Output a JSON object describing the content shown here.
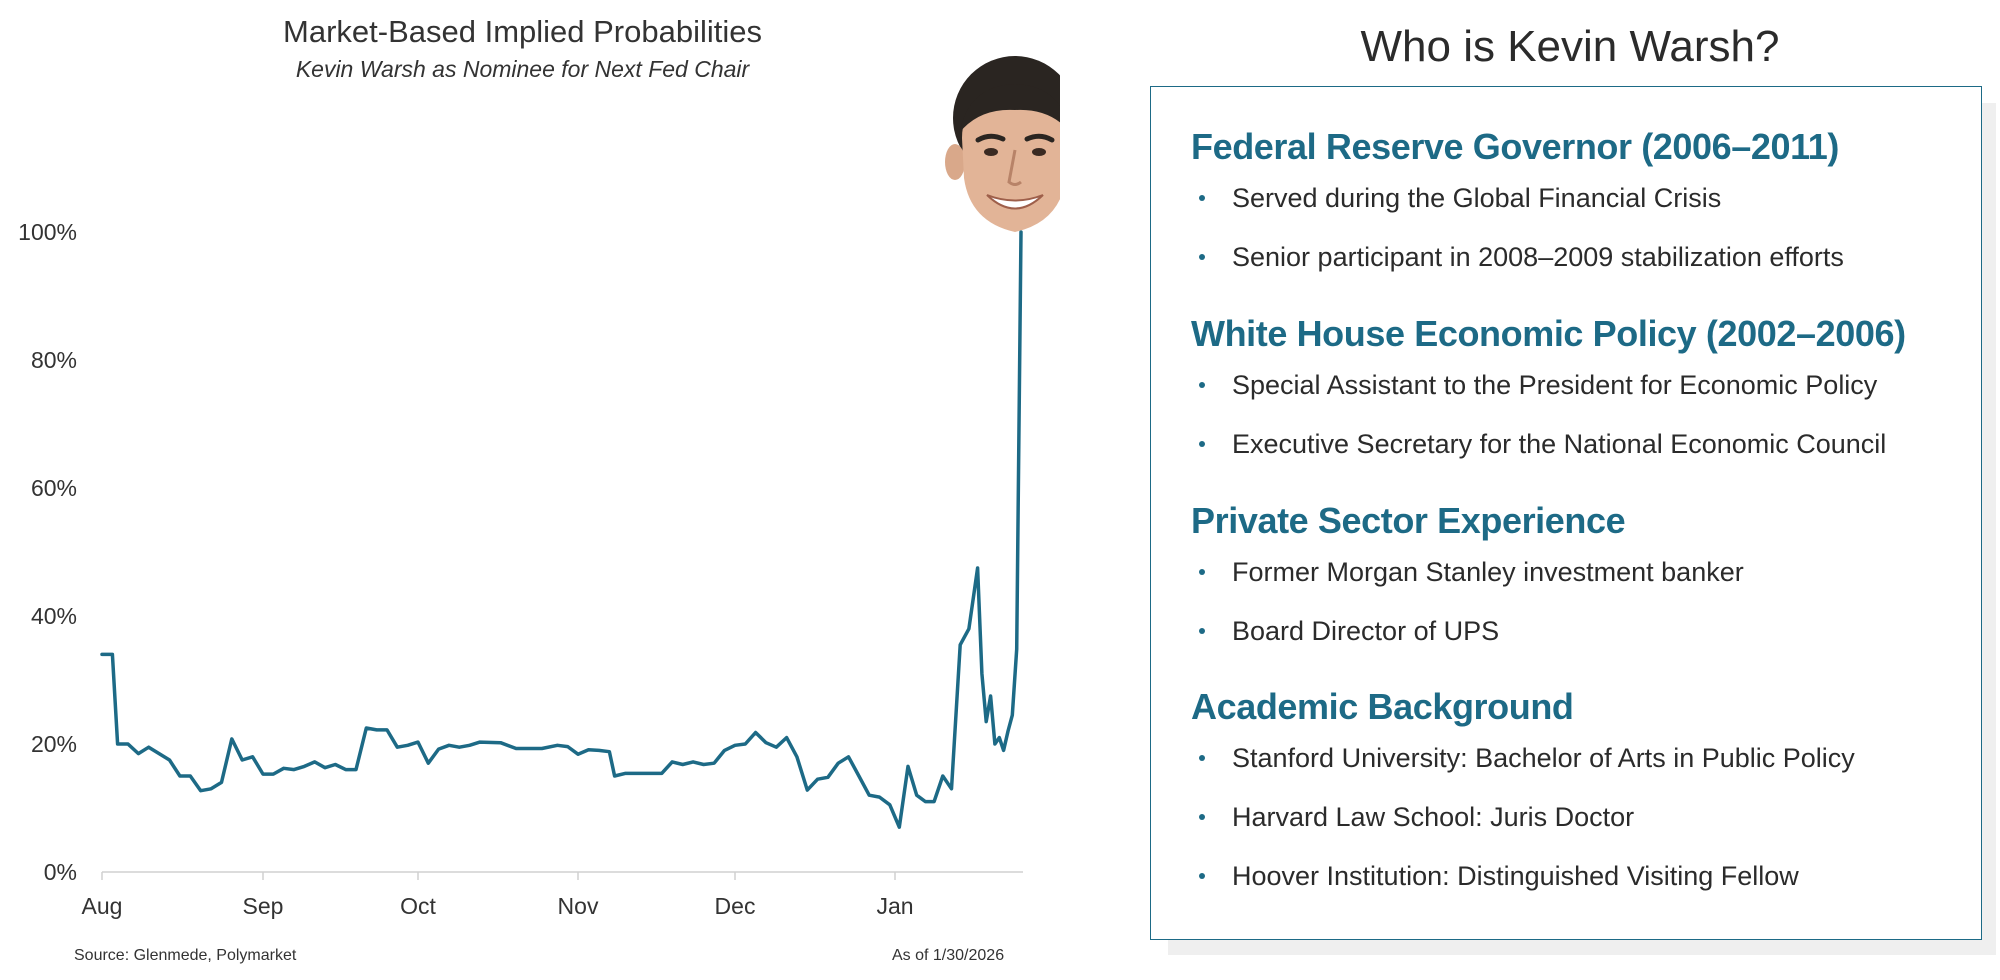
{
  "chart_data": {
    "type": "line",
    "title": "Market-Based Implied Probabilities",
    "subtitle": "Kevin Warsh as Nominee for Next Fed Chair",
    "x_tick_labels": [
      "Aug",
      "Sep",
      "Oct",
      "Nov",
      "Dec",
      "Jan"
    ],
    "y_tick_labels": [
      "0%",
      "20%",
      "40%",
      "60%",
      "80%",
      "100%"
    ],
    "y_ticks": [
      0,
      20,
      40,
      60,
      80,
      100
    ],
    "ylim": [
      0,
      100
    ],
    "xlim": [
      "2025-08-01",
      "2026-01-30"
    ],
    "grid": false,
    "series": [
      {
        "color": "#1d6a86",
        "points": [
          [
            "2025-08-01",
            34
          ],
          [
            "2025-08-03",
            34
          ],
          [
            "2025-08-04",
            20
          ],
          [
            "2025-08-06",
            20
          ],
          [
            "2025-08-08",
            18.5
          ],
          [
            "2025-08-10",
            19.5
          ],
          [
            "2025-08-12",
            18.5
          ],
          [
            "2025-08-14",
            17.5
          ],
          [
            "2025-08-16",
            15
          ],
          [
            "2025-08-18",
            15
          ],
          [
            "2025-08-20",
            12.7
          ],
          [
            "2025-08-22",
            13
          ],
          [
            "2025-08-24",
            14
          ],
          [
            "2025-08-26",
            20.8
          ],
          [
            "2025-08-28",
            17.5
          ],
          [
            "2025-08-30",
            18
          ],
          [
            "2025-09-01",
            15.3
          ],
          [
            "2025-09-03",
            15.3
          ],
          [
            "2025-09-05",
            16.2
          ],
          [
            "2025-09-07",
            16
          ],
          [
            "2025-09-09",
            16.5
          ],
          [
            "2025-09-11",
            17.2
          ],
          [
            "2025-09-13",
            16.3
          ],
          [
            "2025-09-15",
            16.8
          ],
          [
            "2025-09-17",
            16.0
          ],
          [
            "2025-09-19",
            16.0
          ],
          [
            "2025-09-21",
            22.5
          ],
          [
            "2025-09-23",
            22.2
          ],
          [
            "2025-09-25",
            22.2
          ],
          [
            "2025-09-27",
            19.5
          ],
          [
            "2025-09-29",
            19.8
          ],
          [
            "2025-10-01",
            20.3
          ],
          [
            "2025-10-03",
            17
          ],
          [
            "2025-10-05",
            19.2
          ],
          [
            "2025-10-07",
            19.8
          ],
          [
            "2025-10-09",
            19.5
          ],
          [
            "2025-10-11",
            19.8
          ],
          [
            "2025-10-13",
            20.3
          ],
          [
            "2025-10-17",
            20.2
          ],
          [
            "2025-10-20",
            19.3
          ],
          [
            "2025-10-25",
            19.3
          ],
          [
            "2025-10-28",
            19.8
          ],
          [
            "2025-10-30",
            19.6
          ],
          [
            "2025-11-01",
            18.4
          ],
          [
            "2025-11-03",
            19.1
          ],
          [
            "2025-11-05",
            19.0
          ],
          [
            "2025-11-07",
            18.8
          ],
          [
            "2025-11-08",
            15
          ],
          [
            "2025-11-10",
            15.4
          ],
          [
            "2025-11-13",
            15.4
          ],
          [
            "2025-11-17",
            15.4
          ],
          [
            "2025-11-19",
            17.2
          ],
          [
            "2025-11-21",
            16.8
          ],
          [
            "2025-11-23",
            17.2
          ],
          [
            "2025-11-25",
            16.8
          ],
          [
            "2025-11-27",
            17
          ],
          [
            "2025-11-29",
            19.0
          ],
          [
            "2025-12-01",
            19.8
          ],
          [
            "2025-12-03",
            20
          ],
          [
            "2025-12-05",
            21.8
          ],
          [
            "2025-12-07",
            20.2
          ],
          [
            "2025-12-09",
            19.5
          ],
          [
            "2025-12-11",
            21
          ],
          [
            "2025-12-13",
            18
          ],
          [
            "2025-12-15",
            12.8
          ],
          [
            "2025-12-17",
            14.5
          ],
          [
            "2025-12-19",
            14.8
          ],
          [
            "2025-12-21",
            17
          ],
          [
            "2025-12-23",
            18
          ],
          [
            "2025-12-25",
            15
          ],
          [
            "2025-12-27",
            12
          ],
          [
            "2025-12-29",
            11.7
          ],
          [
            "2025-12-31",
            10.5
          ],
          [
            "2026-01-02",
            7
          ],
          [
            "2026-01-04",
            16.5
          ],
          [
            "2026-01-06",
            12
          ],
          [
            "2026-01-08",
            11
          ],
          [
            "2026-01-10",
            11
          ],
          [
            "2026-01-12",
            15
          ],
          [
            "2026-01-14",
            13
          ],
          [
            "2026-01-16",
            35.5
          ],
          [
            "2026-01-18",
            38
          ],
          [
            "2026-01-20",
            47.5
          ],
          [
            "2026-01-21",
            31
          ],
          [
            "2026-01-22",
            23.5
          ],
          [
            "2026-01-23",
            27.5
          ],
          [
            "2026-01-24",
            20
          ],
          [
            "2026-01-25",
            21
          ],
          [
            "2026-01-26",
            19
          ],
          [
            "2026-01-27",
            22
          ],
          [
            "2026-01-28",
            24.5
          ],
          [
            "2026-01-29",
            34.8
          ],
          [
            "2026-01-30",
            100
          ]
        ]
      }
    ],
    "source_note": "Source: Glenmede, Polymarket",
    "as_of_note": "As of 1/30/2026"
  },
  "bio": {
    "title": "Who is Kevin Warsh?",
    "sections": [
      {
        "heading": "Federal Reserve Governor (2006–2011)",
        "items": [
          "Served during the Global Financial Crisis",
          "Senior participant in 2008–2009 stabilization efforts"
        ]
      },
      {
        "heading": "White House Economic Policy (2002–2006)",
        "items": [
          "Special Assistant to the President for Economic Policy",
          "Executive Secretary for the National Economic Council"
        ]
      },
      {
        "heading": "Private Sector Experience",
        "items": [
          "Former Morgan Stanley investment banker",
          "Board Director of UPS"
        ]
      },
      {
        "heading": "Academic Background",
        "items": [
          "Stanford University: Bachelor of Arts in Public Policy",
          "Harvard Law School: Juris Doctor",
          "Hoover Institution: Distinguished Visiting Fellow"
        ]
      }
    ]
  },
  "colors": {
    "accent": "#1d6a86",
    "text": "#2b2b2b"
  }
}
